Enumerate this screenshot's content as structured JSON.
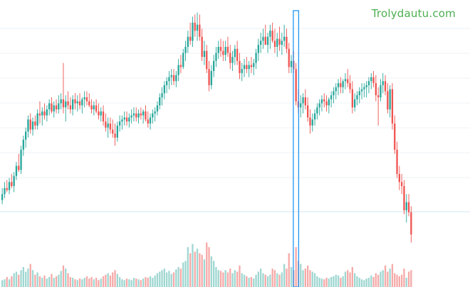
{
  "watermark": "Trolydautu.com",
  "colors": {
    "up": "#26a69a",
    "down": "#ef5350",
    "vol_up": "#9fd7d1",
    "vol_down": "#f5aaa8",
    "highlight": "#2196f3",
    "grid": "#eef1f4",
    "baseline": "#cfe7ee"
  },
  "chart_data": {
    "type": "candlestick",
    "title": "",
    "xlabel": "",
    "ylabel": "",
    "ylim": [
      0,
      100
    ],
    "volume_ylim": [
      0,
      100
    ],
    "highlighted_index": 125,
    "candles": [
      {
        "o": 5,
        "h": 11,
        "l": 3,
        "c": 8,
        "v": 9
      },
      {
        "o": 8,
        "h": 14,
        "l": 6,
        "c": 11,
        "v": 10
      },
      {
        "o": 11,
        "h": 15,
        "l": 9,
        "c": 10,
        "v": 13
      },
      {
        "o": 10,
        "h": 16,
        "l": 8,
        "c": 14,
        "v": 10
      },
      {
        "o": 14,
        "h": 18,
        "l": 11,
        "c": 12,
        "v": 14
      },
      {
        "o": 12,
        "h": 19,
        "l": 9,
        "c": 17,
        "v": 18
      },
      {
        "o": 17,
        "h": 24,
        "l": 15,
        "c": 22,
        "v": 20
      },
      {
        "o": 22,
        "h": 28,
        "l": 19,
        "c": 20,
        "v": 16
      },
      {
        "o": 20,
        "h": 32,
        "l": 18,
        "c": 30,
        "v": 22
      },
      {
        "o": 30,
        "h": 37,
        "l": 27,
        "c": 35,
        "v": 26
      },
      {
        "o": 35,
        "h": 41,
        "l": 31,
        "c": 39,
        "v": 20
      },
      {
        "o": 39,
        "h": 47,
        "l": 36,
        "c": 45,
        "v": 24
      },
      {
        "o": 45,
        "h": 48,
        "l": 38,
        "c": 40,
        "v": 30
      },
      {
        "o": 40,
        "h": 46,
        "l": 37,
        "c": 44,
        "v": 22
      },
      {
        "o": 44,
        "h": 47,
        "l": 40,
        "c": 42,
        "v": 16
      },
      {
        "o": 42,
        "h": 50,
        "l": 40,
        "c": 48,
        "v": 19
      },
      {
        "o": 48,
        "h": 54,
        "l": 43,
        "c": 47,
        "v": 14
      },
      {
        "o": 47,
        "h": 51,
        "l": 42,
        "c": 49,
        "v": 12
      },
      {
        "o": 49,
        "h": 53,
        "l": 45,
        "c": 47,
        "v": 15
      },
      {
        "o": 47,
        "h": 52,
        "l": 44,
        "c": 50,
        "v": 11
      },
      {
        "o": 50,
        "h": 55,
        "l": 47,
        "c": 53,
        "v": 13
      },
      {
        "o": 53,
        "h": 56,
        "l": 48,
        "c": 49,
        "v": 17
      },
      {
        "o": 49,
        "h": 54,
        "l": 46,
        "c": 52,
        "v": 12
      },
      {
        "o": 52,
        "h": 55,
        "l": 48,
        "c": 50,
        "v": 14
      },
      {
        "o": 50,
        "h": 57,
        "l": 48,
        "c": 53,
        "v": 16
      },
      {
        "o": 53,
        "h": 58,
        "l": 50,
        "c": 55,
        "v": 21
      },
      {
        "o": 55,
        "h": 73,
        "l": 48,
        "c": 51,
        "v": 28
      },
      {
        "o": 51,
        "h": 57,
        "l": 44,
        "c": 54,
        "v": 24
      },
      {
        "o": 54,
        "h": 59,
        "l": 50,
        "c": 52,
        "v": 18
      },
      {
        "o": 52,
        "h": 56,
        "l": 48,
        "c": 50,
        "v": 13
      },
      {
        "o": 50,
        "h": 57,
        "l": 47,
        "c": 55,
        "v": 12
      },
      {
        "o": 55,
        "h": 58,
        "l": 50,
        "c": 53,
        "v": 10
      },
      {
        "o": 53,
        "h": 57,
        "l": 49,
        "c": 54,
        "v": 9
      },
      {
        "o": 54,
        "h": 58,
        "l": 50,
        "c": 52,
        "v": 11
      },
      {
        "o": 52,
        "h": 56,
        "l": 48,
        "c": 55,
        "v": 10
      },
      {
        "o": 55,
        "h": 59,
        "l": 51,
        "c": 56,
        "v": 12
      },
      {
        "o": 56,
        "h": 59,
        "l": 52,
        "c": 54,
        "v": 14
      },
      {
        "o": 54,
        "h": 58,
        "l": 51,
        "c": 52,
        "v": 11
      },
      {
        "o": 52,
        "h": 55,
        "l": 48,
        "c": 50,
        "v": 13
      },
      {
        "o": 50,
        "h": 54,
        "l": 47,
        "c": 52,
        "v": 10
      },
      {
        "o": 52,
        "h": 55,
        "l": 48,
        "c": 49,
        "v": 12
      },
      {
        "o": 49,
        "h": 53,
        "l": 45,
        "c": 47,
        "v": 9
      },
      {
        "o": 47,
        "h": 51,
        "l": 44,
        "c": 49,
        "v": 11
      },
      {
        "o": 49,
        "h": 52,
        "l": 42,
        "c": 44,
        "v": 14
      },
      {
        "o": 44,
        "h": 48,
        "l": 39,
        "c": 41,
        "v": 16
      },
      {
        "o": 41,
        "h": 46,
        "l": 36,
        "c": 43,
        "v": 18
      },
      {
        "o": 43,
        "h": 46,
        "l": 38,
        "c": 40,
        "v": 15
      },
      {
        "o": 40,
        "h": 45,
        "l": 36,
        "c": 38,
        "v": 19
      },
      {
        "o": 38,
        "h": 43,
        "l": 32,
        "c": 36,
        "v": 22
      },
      {
        "o": 36,
        "h": 44,
        "l": 34,
        "c": 42,
        "v": 17
      },
      {
        "o": 42,
        "h": 47,
        "l": 39,
        "c": 44,
        "v": 13
      },
      {
        "o": 44,
        "h": 47,
        "l": 40,
        "c": 45,
        "v": 10
      },
      {
        "o": 45,
        "h": 49,
        "l": 42,
        "c": 46,
        "v": 9
      },
      {
        "o": 46,
        "h": 49,
        "l": 42,
        "c": 44,
        "v": 11
      },
      {
        "o": 44,
        "h": 48,
        "l": 41,
        "c": 46,
        "v": 10
      },
      {
        "o": 46,
        "h": 50,
        "l": 43,
        "c": 47,
        "v": 9
      },
      {
        "o": 47,
        "h": 51,
        "l": 44,
        "c": 48,
        "v": 12
      },
      {
        "o": 48,
        "h": 51,
        "l": 44,
        "c": 46,
        "v": 11
      },
      {
        "o": 46,
        "h": 50,
        "l": 43,
        "c": 48,
        "v": 10
      },
      {
        "o": 48,
        "h": 51,
        "l": 45,
        "c": 47,
        "v": 9
      },
      {
        "o": 47,
        "h": 50,
        "l": 43,
        "c": 49,
        "v": 11
      },
      {
        "o": 49,
        "h": 52,
        "l": 44,
        "c": 45,
        "v": 13
      },
      {
        "o": 45,
        "h": 49,
        "l": 41,
        "c": 43,
        "v": 12
      },
      {
        "o": 43,
        "h": 48,
        "l": 40,
        "c": 46,
        "v": 14
      },
      {
        "o": 46,
        "h": 50,
        "l": 43,
        "c": 48,
        "v": 12
      },
      {
        "o": 48,
        "h": 51,
        "l": 44,
        "c": 49,
        "v": 15
      },
      {
        "o": 49,
        "h": 54,
        "l": 47,
        "c": 52,
        "v": 18
      },
      {
        "o": 52,
        "h": 58,
        "l": 50,
        "c": 56,
        "v": 20
      },
      {
        "o": 56,
        "h": 61,
        "l": 52,
        "c": 58,
        "v": 22
      },
      {
        "o": 58,
        "h": 64,
        "l": 55,
        "c": 62,
        "v": 24
      },
      {
        "o": 62,
        "h": 66,
        "l": 58,
        "c": 64,
        "v": 19
      },
      {
        "o": 64,
        "h": 69,
        "l": 60,
        "c": 66,
        "v": 21
      },
      {
        "o": 66,
        "h": 70,
        "l": 62,
        "c": 67,
        "v": 17
      },
      {
        "o": 67,
        "h": 70,
        "l": 62,
        "c": 64,
        "v": 19
      },
      {
        "o": 64,
        "h": 69,
        "l": 61,
        "c": 67,
        "v": 23
      },
      {
        "o": 67,
        "h": 75,
        "l": 64,
        "c": 72,
        "v": 26
      },
      {
        "o": 72,
        "h": 77,
        "l": 68,
        "c": 71,
        "v": 24
      },
      {
        "o": 71,
        "h": 80,
        "l": 70,
        "c": 78,
        "v": 32
      },
      {
        "o": 78,
        "h": 84,
        "l": 74,
        "c": 81,
        "v": 34
      },
      {
        "o": 81,
        "h": 89,
        "l": 78,
        "c": 86,
        "v": 52
      },
      {
        "o": 86,
        "h": 93,
        "l": 82,
        "c": 84,
        "v": 44
      },
      {
        "o": 84,
        "h": 96,
        "l": 81,
        "c": 93,
        "v": 56
      },
      {
        "o": 93,
        "h": 97,
        "l": 86,
        "c": 89,
        "v": 46
      },
      {
        "o": 89,
        "h": 98,
        "l": 84,
        "c": 92,
        "v": 50
      },
      {
        "o": 92,
        "h": 97,
        "l": 84,
        "c": 86,
        "v": 44
      },
      {
        "o": 86,
        "h": 90,
        "l": 74,
        "c": 76,
        "v": 42
      },
      {
        "o": 76,
        "h": 84,
        "l": 72,
        "c": 79,
        "v": 36
      },
      {
        "o": 79,
        "h": 82,
        "l": 68,
        "c": 70,
        "v": 58
      },
      {
        "o": 70,
        "h": 74,
        "l": 59,
        "c": 62,
        "v": 52
      },
      {
        "o": 62,
        "h": 72,
        "l": 60,
        "c": 69,
        "v": 40
      },
      {
        "o": 69,
        "h": 77,
        "l": 66,
        "c": 74,
        "v": 34
      },
      {
        "o": 74,
        "h": 81,
        "l": 71,
        "c": 78,
        "v": 26
      },
      {
        "o": 78,
        "h": 84,
        "l": 75,
        "c": 81,
        "v": 22
      },
      {
        "o": 81,
        "h": 85,
        "l": 76,
        "c": 79,
        "v": 21
      },
      {
        "o": 79,
        "h": 84,
        "l": 74,
        "c": 77,
        "v": 19
      },
      {
        "o": 77,
        "h": 84,
        "l": 74,
        "c": 81,
        "v": 22
      },
      {
        "o": 81,
        "h": 86,
        "l": 76,
        "c": 78,
        "v": 19
      },
      {
        "o": 78,
        "h": 82,
        "l": 70,
        "c": 73,
        "v": 24
      },
      {
        "o": 73,
        "h": 79,
        "l": 69,
        "c": 76,
        "v": 18
      },
      {
        "o": 76,
        "h": 82,
        "l": 72,
        "c": 80,
        "v": 22
      },
      {
        "o": 80,
        "h": 84,
        "l": 72,
        "c": 74,
        "v": 20
      },
      {
        "o": 74,
        "h": 78,
        "l": 65,
        "c": 68,
        "v": 28
      },
      {
        "o": 68,
        "h": 73,
        "l": 64,
        "c": 70,
        "v": 18
      },
      {
        "o": 70,
        "h": 75,
        "l": 66,
        "c": 72,
        "v": 16
      },
      {
        "o": 72,
        "h": 76,
        "l": 68,
        "c": 70,
        "v": 14
      },
      {
        "o": 70,
        "h": 74,
        "l": 66,
        "c": 72,
        "v": 12
      },
      {
        "o": 72,
        "h": 76,
        "l": 68,
        "c": 71,
        "v": 13
      },
      {
        "o": 71,
        "h": 75,
        "l": 67,
        "c": 73,
        "v": 11
      },
      {
        "o": 73,
        "h": 80,
        "l": 70,
        "c": 78,
        "v": 16
      },
      {
        "o": 78,
        "h": 85,
        "l": 74,
        "c": 82,
        "v": 20
      },
      {
        "o": 82,
        "h": 88,
        "l": 78,
        "c": 84,
        "v": 24
      },
      {
        "o": 84,
        "h": 90,
        "l": 80,
        "c": 86,
        "v": 18
      },
      {
        "o": 86,
        "h": 92,
        "l": 82,
        "c": 82,
        "v": 16
      },
      {
        "o": 82,
        "h": 88,
        "l": 78,
        "c": 86,
        "v": 14
      },
      {
        "o": 86,
        "h": 92,
        "l": 80,
        "c": 89,
        "v": 16
      },
      {
        "o": 89,
        "h": 93,
        "l": 83,
        "c": 84,
        "v": 24
      },
      {
        "o": 84,
        "h": 90,
        "l": 78,
        "c": 81,
        "v": 22
      },
      {
        "o": 81,
        "h": 88,
        "l": 76,
        "c": 85,
        "v": 18
      },
      {
        "o": 85,
        "h": 91,
        "l": 79,
        "c": 82,
        "v": 16
      },
      {
        "o": 82,
        "h": 88,
        "l": 77,
        "c": 84,
        "v": 19
      },
      {
        "o": 84,
        "h": 92,
        "l": 81,
        "c": 86,
        "v": 30
      },
      {
        "o": 86,
        "h": 90,
        "l": 78,
        "c": 80,
        "v": 24
      },
      {
        "o": 80,
        "h": 83,
        "l": 68,
        "c": 71,
        "v": 44
      },
      {
        "o": 71,
        "h": 77,
        "l": 68,
        "c": 74,
        "v": 26
      },
      {
        "o": 74,
        "h": 79,
        "l": 68,
        "c": 70,
        "v": 22
      },
      {
        "o": 70,
        "h": 73,
        "l": 52,
        "c": 54,
        "v": 52
      },
      {
        "o": 54,
        "h": 60,
        "l": 48,
        "c": 51,
        "v": 34
      },
      {
        "o": 51,
        "h": 57,
        "l": 46,
        "c": 53,
        "v": 30
      },
      {
        "o": 53,
        "h": 58,
        "l": 48,
        "c": 56,
        "v": 22
      },
      {
        "o": 56,
        "h": 60,
        "l": 50,
        "c": 52,
        "v": 24
      },
      {
        "o": 52,
        "h": 56,
        "l": 44,
        "c": 46,
        "v": 28
      },
      {
        "o": 46,
        "h": 50,
        "l": 38,
        "c": 42,
        "v": 22
      },
      {
        "o": 42,
        "h": 48,
        "l": 39,
        "c": 45,
        "v": 20
      },
      {
        "o": 45,
        "h": 50,
        "l": 42,
        "c": 48,
        "v": 18
      },
      {
        "o": 48,
        "h": 53,
        "l": 45,
        "c": 51,
        "v": 14
      },
      {
        "o": 51,
        "h": 55,
        "l": 47,
        "c": 53,
        "v": 12
      },
      {
        "o": 53,
        "h": 57,
        "l": 49,
        "c": 55,
        "v": 11
      },
      {
        "o": 55,
        "h": 58,
        "l": 51,
        "c": 54,
        "v": 10
      },
      {
        "o": 54,
        "h": 57,
        "l": 49,
        "c": 52,
        "v": 12
      },
      {
        "o": 52,
        "h": 56,
        "l": 48,
        "c": 55,
        "v": 11
      },
      {
        "o": 55,
        "h": 59,
        "l": 51,
        "c": 57,
        "v": 13
      },
      {
        "o": 57,
        "h": 61,
        "l": 53,
        "c": 59,
        "v": 14
      },
      {
        "o": 59,
        "h": 63,
        "l": 55,
        "c": 61,
        "v": 16
      },
      {
        "o": 61,
        "h": 65,
        "l": 57,
        "c": 63,
        "v": 15
      },
      {
        "o": 63,
        "h": 66,
        "l": 58,
        "c": 61,
        "v": 12
      },
      {
        "o": 61,
        "h": 65,
        "l": 58,
        "c": 64,
        "v": 14
      },
      {
        "o": 64,
        "h": 68,
        "l": 60,
        "c": 65,
        "v": 20
      },
      {
        "o": 65,
        "h": 70,
        "l": 61,
        "c": 63,
        "v": 22
      },
      {
        "o": 63,
        "h": 67,
        "l": 58,
        "c": 60,
        "v": 19
      },
      {
        "o": 60,
        "h": 64,
        "l": 48,
        "c": 51,
        "v": 26
      },
      {
        "o": 51,
        "h": 58,
        "l": 49,
        "c": 55,
        "v": 18
      },
      {
        "o": 55,
        "h": 59,
        "l": 52,
        "c": 57,
        "v": 14
      },
      {
        "o": 57,
        "h": 61,
        "l": 53,
        "c": 59,
        "v": 12
      },
      {
        "o": 59,
        "h": 63,
        "l": 55,
        "c": 60,
        "v": 10
      },
      {
        "o": 60,
        "h": 63,
        "l": 56,
        "c": 61,
        "v": 9
      },
      {
        "o": 61,
        "h": 64,
        "l": 56,
        "c": 62,
        "v": 11
      },
      {
        "o": 62,
        "h": 66,
        "l": 58,
        "c": 64,
        "v": 12
      },
      {
        "o": 64,
        "h": 68,
        "l": 60,
        "c": 66,
        "v": 15
      },
      {
        "o": 66,
        "h": 69,
        "l": 61,
        "c": 63,
        "v": 13
      },
      {
        "o": 63,
        "h": 67,
        "l": 54,
        "c": 57,
        "v": 18
      },
      {
        "o": 57,
        "h": 61,
        "l": 42,
        "c": 56,
        "v": 16
      },
      {
        "o": 56,
        "h": 65,
        "l": 54,
        "c": 62,
        "v": 20
      },
      {
        "o": 62,
        "h": 68,
        "l": 58,
        "c": 64,
        "v": 22
      },
      {
        "o": 64,
        "h": 67,
        "l": 57,
        "c": 59,
        "v": 28
      },
      {
        "o": 59,
        "h": 63,
        "l": 48,
        "c": 50,
        "v": 20
      },
      {
        "o": 50,
        "h": 62,
        "l": 46,
        "c": 60,
        "v": 24
      },
      {
        "o": 60,
        "h": 63,
        "l": 40,
        "c": 43,
        "v": 30
      },
      {
        "o": 43,
        "h": 47,
        "l": 28,
        "c": 30,
        "v": 18
      },
      {
        "o": 30,
        "h": 34,
        "l": 16,
        "c": 18,
        "v": 16
      },
      {
        "o": 18,
        "h": 22,
        "l": 10,
        "c": 14,
        "v": 14
      },
      {
        "o": 14,
        "h": 18,
        "l": 8,
        "c": 12,
        "v": 16
      },
      {
        "o": 12,
        "h": 15,
        "l": -2,
        "c": 0,
        "v": 24
      },
      {
        "o": 0,
        "h": 8,
        "l": -6,
        "c": 4,
        "v": 12
      },
      {
        "o": 4,
        "h": 8,
        "l": -3,
        "c": -1,
        "v": 20
      },
      {
        "o": -1,
        "h": 2,
        "l": -16,
        "c": -12,
        "v": 22
      }
    ]
  }
}
